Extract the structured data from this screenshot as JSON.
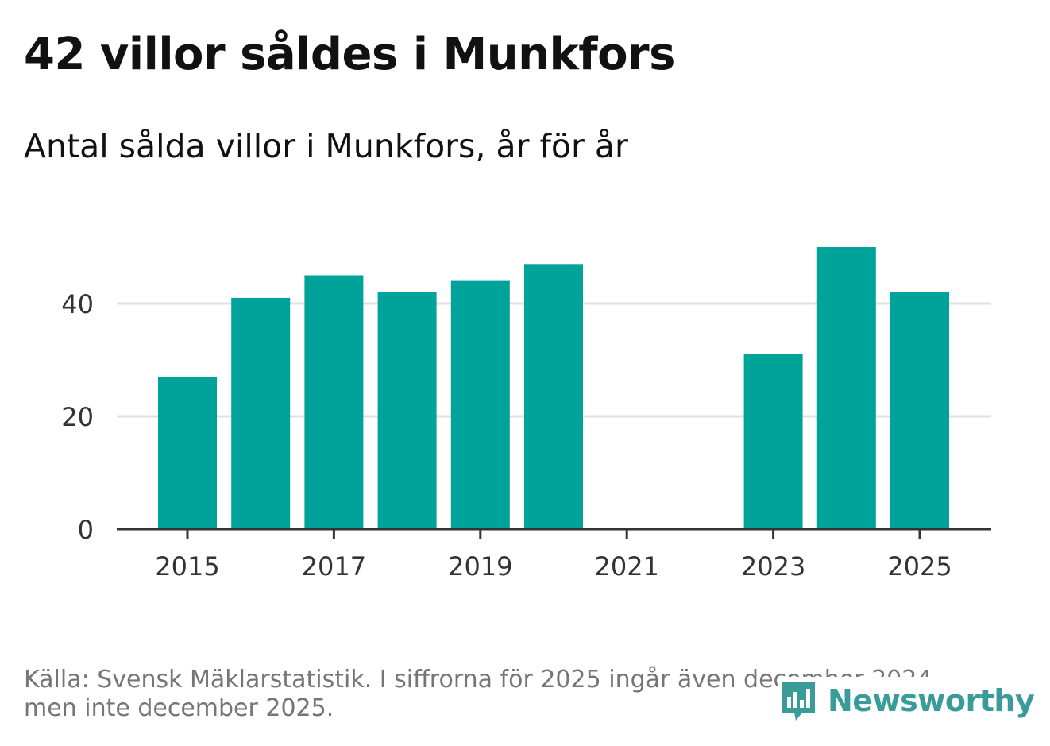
{
  "header": {
    "title": "42 villor såldes i Munkfors",
    "subtitle": "Antal sålda villor i Munkfors, år för år"
  },
  "footer": {
    "source": "Källa: Svensk Mäklarstatistik. I siffrorna för 2025 ingår även december 2024, men inte december 2025.",
    "logo_text": "Newsworthy"
  },
  "colors": {
    "bar": "#00a39a",
    "grid": "#e0e0e0",
    "axis": "#333333",
    "logo": "#3a9c99"
  },
  "chart_data": {
    "type": "bar",
    "title": "42 villor såldes i Munkfors",
    "subtitle": "Antal sålda villor i Munkfors, år för år",
    "xlabel": "",
    "ylabel": "",
    "categories": [
      "2015",
      "2016",
      "2017",
      "2018",
      "2019",
      "2020",
      "2021",
      "2022",
      "2023",
      "2024",
      "2025"
    ],
    "values": [
      27,
      41,
      45,
      42,
      44,
      47,
      null,
      null,
      31,
      50,
      42
    ],
    "x_tick_labels": [
      "2015",
      "2017",
      "2019",
      "2021",
      "2023",
      "2025"
    ],
    "y_ticks": [
      0,
      20,
      40
    ],
    "y_tick_labels": [
      "0",
      "20",
      "40"
    ],
    "ylim": [
      0,
      50
    ],
    "grid": true
  }
}
